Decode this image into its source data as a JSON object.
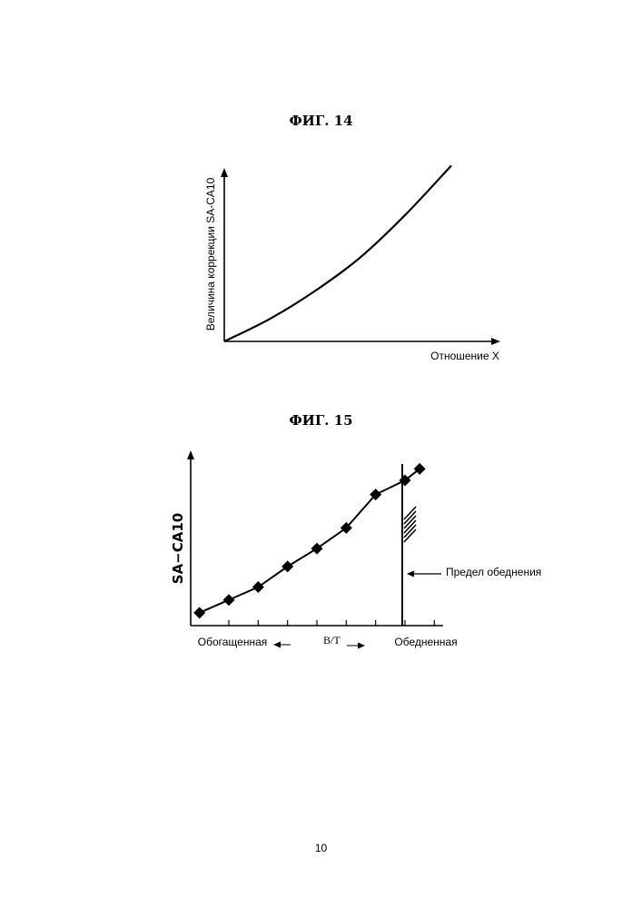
{
  "figures": [
    {
      "title": "ФИГ. 14",
      "ylabel": "Величина коррекции SA-CA10",
      "xlabel": "Отношение X"
    },
    {
      "title": "ФИГ. 15",
      "ylabel": "SA−CA10",
      "xlabel_left": "Обогащенная",
      "xlabel_mid": "B/T",
      "xlabel_right": "Обедненная",
      "annotation": "Предел обеднения"
    }
  ],
  "chart_data": [
    {
      "type": "line",
      "title": "ФИГ. 14",
      "xlabel": "Отношение X",
      "ylabel": "Величина коррекции SA-CA10",
      "x": [
        0,
        0.2,
        0.4,
        0.6,
        0.8,
        1.0
      ],
      "y": [
        0,
        0.12,
        0.27,
        0.45,
        0.68,
        0.94
      ],
      "xlim": [
        0,
        1.0
      ],
      "ylim": [
        0,
        1.0
      ],
      "grid": false
    },
    {
      "type": "line",
      "title": "ФИГ. 15",
      "xlabel": "B/T",
      "ylabel": "SA−CA10",
      "x": [
        0,
        1,
        2,
        3,
        4,
        5,
        6,
        7,
        7.5
      ],
      "y": [
        0,
        0.1,
        0.2,
        0.36,
        0.5,
        0.66,
        0.92,
        1.03,
        1.12
      ],
      "xlim": [
        -0.3,
        8.3
      ],
      "ylim": [
        -0.1,
        1.2
      ],
      "lean_limit_x": 7.0,
      "ticks_x": [
        1,
        2,
        3,
        4,
        5,
        6,
        7,
        8
      ],
      "grid": false
    }
  ],
  "page_number": "10"
}
